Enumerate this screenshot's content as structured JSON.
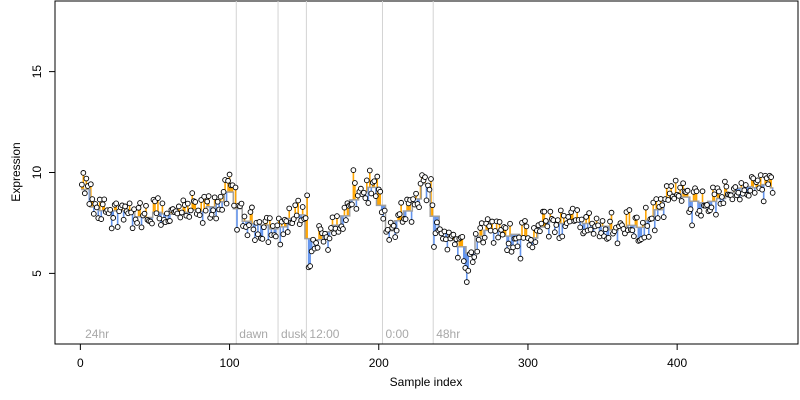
{
  "chart_data": {
    "type": "scatter",
    "xlabel": "Sample index",
    "ylabel": "Expression",
    "xlim": [
      -17,
      481
    ],
    "ylim": [
      1.5,
      18.5
    ],
    "xticks": [
      0,
      100,
      200,
      300,
      400
    ],
    "yticks": [
      5,
      10,
      15
    ],
    "grid": false,
    "legend": "none",
    "colors": {
      "point_fill": "#ffffff",
      "point_stroke": "#000000",
      "stick_up": "#ffa500",
      "stick_down": "#6495ed",
      "baseline": "#a0a0a0",
      "section_divider": "#d3d3d3",
      "section_label": "#a8a8a8"
    },
    "sections": [
      {
        "label": "24hr",
        "start": 1
      },
      {
        "label": "dawn",
        "start": 105
      },
      {
        "label": "dusk",
        "start": 133
      },
      {
        "label": "12:00",
        "start": 152
      },
      {
        "label": "0:00",
        "start": 203
      },
      {
        "label": "48hr",
        "start": 237
      }
    ],
    "anchor_points": [
      [
        1,
        9.3
      ],
      [
        5,
        9.1
      ],
      [
        8,
        8.6
      ],
      [
        10,
        8.0
      ],
      [
        15,
        8.1
      ],
      [
        20,
        8.2
      ],
      [
        25,
        7.9
      ],
      [
        30,
        8.3
      ],
      [
        35,
        7.9
      ],
      [
        40,
        7.8
      ],
      [
        45,
        7.7
      ],
      [
        50,
        8.0
      ],
      [
        55,
        8.1
      ],
      [
        60,
        7.8
      ],
      [
        65,
        8.0
      ],
      [
        70,
        8.0
      ],
      [
        75,
        8.2
      ],
      [
        80,
        8.0
      ],
      [
        85,
        8.2
      ],
      [
        90,
        8.4
      ],
      [
        95,
        8.6
      ],
      [
        100,
        9.2
      ],
      [
        104,
        8.8
      ],
      [
        105,
        8.0
      ],
      [
        110,
        7.6
      ],
      [
        115,
        7.5
      ],
      [
        120,
        7.4
      ],
      [
        125,
        7.4
      ],
      [
        130,
        7.2
      ],
      [
        133,
        7.0
      ],
      [
        136,
        7.4
      ],
      [
        140,
        7.7
      ],
      [
        145,
        7.8
      ],
      [
        150,
        8.0
      ],
      [
        152,
        8.5
      ],
      [
        153,
        5.6
      ],
      [
        156,
        6.2
      ],
      [
        160,
        6.8
      ],
      [
        165,
        7.0
      ],
      [
        170,
        7.4
      ],
      [
        175,
        7.4
      ],
      [
        180,
        8.3
      ],
      [
        185,
        8.8
      ],
      [
        190,
        9.1
      ],
      [
        195,
        9.3
      ],
      [
        200,
        9.2
      ],
      [
        203,
        7.6
      ],
      [
        206,
        7.0
      ],
      [
        210,
        7.2
      ],
      [
        215,
        7.8
      ],
      [
        220,
        8.1
      ],
      [
        225,
        8.6
      ],
      [
        230,
        9.3
      ],
      [
        235,
        9.8
      ],
      [
        237,
        7.0
      ],
      [
        240,
        7.4
      ],
      [
        245,
        6.9
      ],
      [
        250,
        6.6
      ],
      [
        255,
        6.4
      ],
      [
        260,
        5.9
      ],
      [
        263,
        6.0
      ],
      [
        266,
        6.8
      ],
      [
        270,
        7.0
      ],
      [
        275,
        7.2
      ],
      [
        280,
        7.1
      ],
      [
        285,
        6.8
      ],
      [
        290,
        6.9
      ],
      [
        295,
        7.0
      ],
      [
        300,
        6.6
      ],
      [
        305,
        6.8
      ],
      [
        310,
        7.4
      ],
      [
        315,
        7.6
      ],
      [
        320,
        7.5
      ],
      [
        325,
        7.4
      ],
      [
        330,
        7.6
      ],
      [
        335,
        7.7
      ],
      [
        340,
        7.4
      ],
      [
        345,
        7.5
      ],
      [
        350,
        7.4
      ],
      [
        355,
        7.2
      ],
      [
        360,
        7.1
      ],
      [
        365,
        7.4
      ],
      [
        370,
        7.4
      ],
      [
        375,
        7.2
      ],
      [
        380,
        7.5
      ],
      [
        385,
        7.9
      ],
      [
        390,
        8.4
      ],
      [
        395,
        8.8
      ],
      [
        400,
        9.0
      ],
      [
        405,
        8.8
      ],
      [
        410,
        8.6
      ],
      [
        415,
        8.5
      ],
      [
        420,
        8.5
      ],
      [
        425,
        8.6
      ],
      [
        430,
        8.7
      ],
      [
        435,
        9.0
      ],
      [
        440,
        9.2
      ],
      [
        445,
        9.3
      ],
      [
        450,
        9.3
      ],
      [
        455,
        9.2
      ],
      [
        460,
        9.5
      ],
      [
        464,
        9.2
      ]
    ]
  }
}
